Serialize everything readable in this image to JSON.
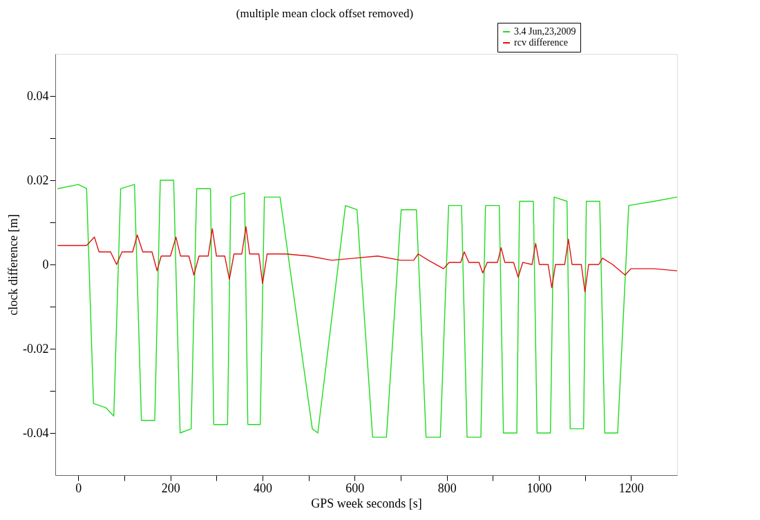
{
  "chart_data": {
    "type": "line",
    "subtitle": "(multiple mean clock offset removed)",
    "xlabel": "GPS week seconds [s]",
    "ylabel": "clock difference [m]",
    "xlim": [
      -50,
      1300
    ],
    "ylim": [
      -0.05,
      0.05
    ],
    "xticks": [
      0,
      {
        "value": 100,
        "label": null
      },
      200,
      {
        "value": 300,
        "label": null
      },
      400,
      {
        "value": 500,
        "label": null
      },
      600,
      {
        "value": 700,
        "label": null
      },
      800,
      {
        "value": 900,
        "label": null
      },
      1000,
      {
        "value": 1100,
        "label": null
      },
      1200
    ],
    "yticks": [
      -0.04,
      {
        "value": -0.03,
        "label": null
      },
      -0.02,
      {
        "value": -0.01,
        "label": null
      },
      0,
      {
        "value": 0.01,
        "label": null
      },
      0.02,
      {
        "value": 0.03,
        "label": null
      },
      0.04
    ],
    "grid": false,
    "legend": "top right",
    "line_style": "solid",
    "marker": "none",
    "series": [
      {
        "name": "3.4 Jun,23,2009",
        "color": "#1edc1e",
        "x": [
          -45,
          0,
          18,
          33,
          60,
          77,
          92,
          122,
          137,
          166,
          178,
          207,
          221,
          245,
          257,
          287,
          294,
          324,
          331,
          361,
          368,
          395,
          404,
          438,
          508,
          520,
          580,
          605,
          639,
          669,
          701,
          734,
          755,
          786,
          804,
          832,
          844,
          874,
          884,
          914,
          923,
          952,
          958,
          988,
          996,
          1025,
          1033,
          1061,
          1068,
          1097,
          1103,
          1132,
          1143,
          1171,
          1195,
          1250,
          1300
        ],
        "values": [
          0.018,
          0.019,
          0.018,
          -0.033,
          -0.034,
          -0.036,
          0.018,
          0.019,
          -0.037,
          -0.037,
          0.02,
          0.02,
          -0.04,
          -0.039,
          0.018,
          0.018,
          -0.038,
          -0.038,
          0.016,
          0.017,
          -0.038,
          -0.038,
          0.016,
          0.016,
          -0.039,
          -0.04,
          0.014,
          0.013,
          -0.041,
          -0.041,
          0.013,
          0.013,
          -0.041,
          -0.041,
          0.014,
          0.014,
          -0.041,
          -0.041,
          0.014,
          0.014,
          -0.04,
          -0.04,
          0.015,
          0.015,
          -0.04,
          -0.04,
          0.016,
          0.015,
          -0.039,
          -0.039,
          0.015,
          0.015,
          -0.04,
          -0.04,
          0.014,
          0.015,
          0.016
        ]
      },
      {
        "name": "rcv difference",
        "color": "#e01010",
        "x": [
          -45,
          18,
          35,
          45,
          70,
          83,
          95,
          118,
          128,
          140,
          160,
          171,
          180,
          200,
          212,
          222,
          240,
          251,
          262,
          282,
          291,
          300,
          318,
          328,
          338,
          355,
          364,
          372,
          392,
          400,
          410,
          450,
          500,
          550,
          600,
          650,
          700,
          728,
          738,
          760,
          793,
          805,
          830,
          838,
          848,
          870,
          878,
          888,
          910,
          918,
          926,
          945,
          955,
          965,
          985,
          993,
          1001,
          1020,
          1028,
          1036,
          1056,
          1064,
          1072,
          1092,
          1100,
          1108,
          1130,
          1138,
          1160,
          1187,
          1200,
          1250,
          1300
        ],
        "values": [
          0.0045,
          0.0045,
          0.0065,
          0.003,
          0.003,
          0.0,
          0.003,
          0.003,
          0.007,
          0.003,
          0.003,
          -0.0015,
          0.002,
          0.002,
          0.0065,
          0.002,
          0.002,
          -0.0025,
          0.002,
          0.002,
          0.0085,
          0.002,
          0.002,
          -0.0035,
          0.0025,
          0.0025,
          0.009,
          0.0025,
          0.0025,
          -0.0045,
          0.0025,
          0.0025,
          0.002,
          0.001,
          0.0015,
          0.002,
          0.001,
          0.001,
          0.0025,
          0.001,
          -0.001,
          0.0005,
          0.0005,
          0.003,
          0.0005,
          0.0005,
          -0.002,
          0.0005,
          0.0005,
          0.004,
          0.0005,
          0.0005,
          -0.003,
          0.0005,
          0.0,
          0.005,
          0.0,
          0.0,
          -0.0055,
          0.0,
          0.0,
          0.006,
          0.0,
          0.0,
          -0.0065,
          0.0,
          0.0,
          0.0015,
          0.0,
          -0.0025,
          -0.001,
          -0.001,
          -0.0015
        ]
      }
    ]
  }
}
